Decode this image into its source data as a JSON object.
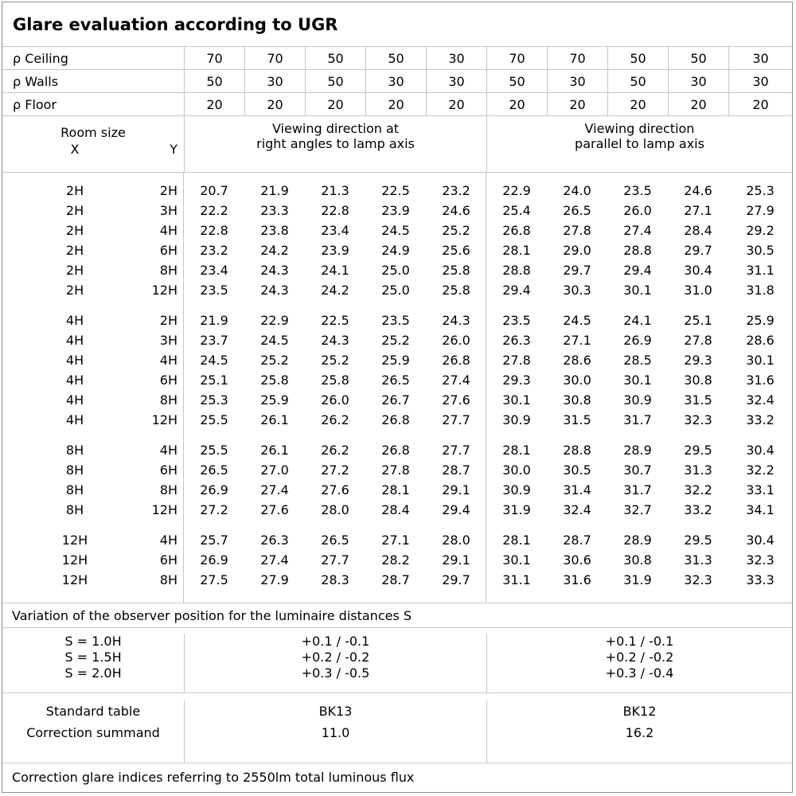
{
  "title": "Glare evaluation according to UGR",
  "colors": {
    "background": "#ffffff",
    "text": "#000000",
    "grid_line": "#c6c6c6",
    "outer_border": "#8e8e8e"
  },
  "reflectance_rows": [
    {
      "label": "ρ Ceiling",
      "values": [
        "70",
        "70",
        "50",
        "50",
        "30",
        "70",
        "70",
        "50",
        "50",
        "30"
      ]
    },
    {
      "label": "ρ Walls",
      "values": [
        "50",
        "30",
        "50",
        "30",
        "30",
        "50",
        "30",
        "50",
        "30",
        "30"
      ]
    },
    {
      "label": "ρ Floor",
      "values": [
        "20",
        "20",
        "20",
        "20",
        "20",
        "20",
        "20",
        "20",
        "20",
        "20"
      ]
    }
  ],
  "header": {
    "room_size": "Room size",
    "x_label": "X",
    "y_label": "Y",
    "left_line1": "Viewing direction at",
    "left_line2": "right angles to lamp axis",
    "right_line1": "Viewing direction",
    "right_line2": "parallel to lamp axis"
  },
  "ugr_groups": [
    {
      "rows": [
        {
          "x": "2H",
          "y": "2H",
          "left": [
            "20.7",
            "21.9",
            "21.3",
            "22.5",
            "23.2"
          ],
          "right": [
            "22.9",
            "24.0",
            "23.5",
            "24.6",
            "25.3"
          ]
        },
        {
          "x": "2H",
          "y": "3H",
          "left": [
            "22.2",
            "23.3",
            "22.8",
            "23.9",
            "24.6"
          ],
          "right": [
            "25.4",
            "26.5",
            "26.0",
            "27.1",
            "27.9"
          ]
        },
        {
          "x": "2H",
          "y": "4H",
          "left": [
            "22.8",
            "23.8",
            "23.4",
            "24.5",
            "25.2"
          ],
          "right": [
            "26.8",
            "27.8",
            "27.4",
            "28.4",
            "29.2"
          ]
        },
        {
          "x": "2H",
          "y": "6H",
          "left": [
            "23.2",
            "24.2",
            "23.9",
            "24.9",
            "25.6"
          ],
          "right": [
            "28.1",
            "29.0",
            "28.8",
            "29.7",
            "30.5"
          ]
        },
        {
          "x": "2H",
          "y": "8H",
          "left": [
            "23.4",
            "24.3",
            "24.1",
            "25.0",
            "25.8"
          ],
          "right": [
            "28.8",
            "29.7",
            "29.4",
            "30.4",
            "31.1"
          ]
        },
        {
          "x": "2H",
          "y": "12H",
          "left": [
            "23.5",
            "24.3",
            "24.2",
            "25.0",
            "25.8"
          ],
          "right": [
            "29.4",
            "30.3",
            "30.1",
            "31.0",
            "31.8"
          ]
        }
      ]
    },
    {
      "rows": [
        {
          "x": "4H",
          "y": "2H",
          "left": [
            "21.9",
            "22.9",
            "22.5",
            "23.5",
            "24.3"
          ],
          "right": [
            "23.5",
            "24.5",
            "24.1",
            "25.1",
            "25.9"
          ]
        },
        {
          "x": "4H",
          "y": "3H",
          "left": [
            "23.7",
            "24.5",
            "24.3",
            "25.2",
            "26.0"
          ],
          "right": [
            "26.3",
            "27.1",
            "26.9",
            "27.8",
            "28.6"
          ]
        },
        {
          "x": "4H",
          "y": "4H",
          "left": [
            "24.5",
            "25.2",
            "25.2",
            "25.9",
            "26.8"
          ],
          "right": [
            "27.8",
            "28.6",
            "28.5",
            "29.3",
            "30.1"
          ]
        },
        {
          "x": "4H",
          "y": "6H",
          "left": [
            "25.1",
            "25.8",
            "25.8",
            "26.5",
            "27.4"
          ],
          "right": [
            "29.3",
            "30.0",
            "30.1",
            "30.8",
            "31.6"
          ]
        },
        {
          "x": "4H",
          "y": "8H",
          "left": [
            "25.3",
            "25.9",
            "26.0",
            "26.7",
            "27.6"
          ],
          "right": [
            "30.1",
            "30.8",
            "30.9",
            "31.5",
            "32.4"
          ]
        },
        {
          "x": "4H",
          "y": "12H",
          "left": [
            "25.5",
            "26.1",
            "26.2",
            "26.8",
            "27.7"
          ],
          "right": [
            "30.9",
            "31.5",
            "31.7",
            "32.3",
            "33.2"
          ]
        }
      ]
    },
    {
      "rows": [
        {
          "x": "8H",
          "y": "4H",
          "left": [
            "25.5",
            "26.1",
            "26.2",
            "26.8",
            "27.7"
          ],
          "right": [
            "28.1",
            "28.8",
            "28.9",
            "29.5",
            "30.4"
          ]
        },
        {
          "x": "8H",
          "y": "6H",
          "left": [
            "26.5",
            "27.0",
            "27.2",
            "27.8",
            "28.7"
          ],
          "right": [
            "30.0",
            "30.5",
            "30.7",
            "31.3",
            "32.2"
          ]
        },
        {
          "x": "8H",
          "y": "8H",
          "left": [
            "26.9",
            "27.4",
            "27.6",
            "28.1",
            "29.1"
          ],
          "right": [
            "30.9",
            "31.4",
            "31.7",
            "32.2",
            "33.1"
          ]
        },
        {
          "x": "8H",
          "y": "12H",
          "left": [
            "27.2",
            "27.6",
            "28.0",
            "28.4",
            "29.4"
          ],
          "right": [
            "31.9",
            "32.4",
            "32.7",
            "33.2",
            "34.1"
          ]
        }
      ]
    },
    {
      "rows": [
        {
          "x": "12H",
          "y": "4H",
          "left": [
            "25.7",
            "26.3",
            "26.5",
            "27.1",
            "28.0"
          ],
          "right": [
            "28.1",
            "28.7",
            "28.9",
            "29.5",
            "30.4"
          ]
        },
        {
          "x": "12H",
          "y": "6H",
          "left": [
            "26.9",
            "27.4",
            "27.7",
            "28.2",
            "29.1"
          ],
          "right": [
            "30.1",
            "30.6",
            "30.8",
            "31.3",
            "32.3"
          ]
        },
        {
          "x": "12H",
          "y": "8H",
          "left": [
            "27.5",
            "27.9",
            "28.3",
            "28.7",
            "29.7"
          ],
          "right": [
            "31.1",
            "31.6",
            "31.9",
            "32.3",
            "33.3"
          ]
        }
      ]
    }
  ],
  "variation": {
    "note": "Variation of the observer position for the luminaire distances S",
    "rows": [
      {
        "label": "S = 1.0H",
        "left": "+0.1 / -0.1",
        "right": "+0.1 / -0.1"
      },
      {
        "label": "S = 1.5H",
        "left": "+0.2 / -0.2",
        "right": "+0.2 / -0.2"
      },
      {
        "label": "S = 2.0H",
        "left": "+0.3 / -0.5",
        "right": "+0.3 / -0.4"
      }
    ]
  },
  "standard": {
    "rows": [
      {
        "label": "Standard table",
        "left": "BK13",
        "right": "BK12"
      },
      {
        "label": "Correction summand",
        "left": "11.0",
        "right": "16.2"
      }
    ]
  },
  "footer_note": "Correction glare indices referring to 2550lm total luminous flux"
}
